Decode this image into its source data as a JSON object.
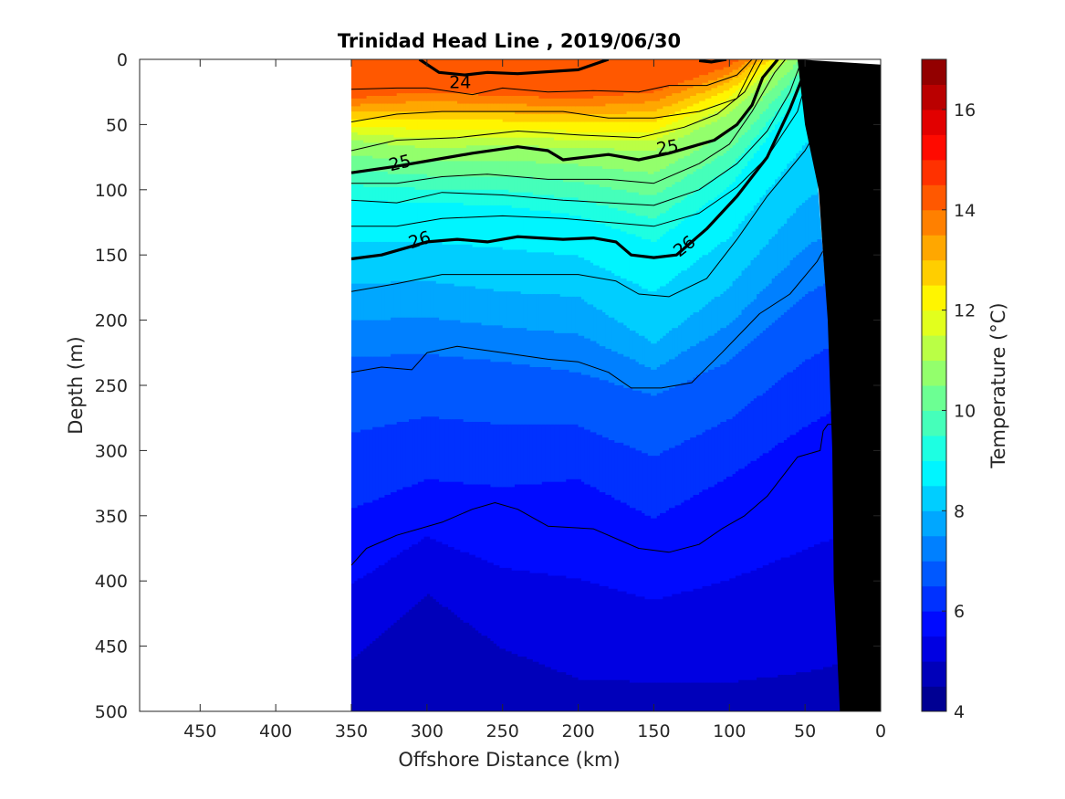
{
  "chart_data": {
    "type": "heatmap",
    "title": "Trinidad Head Line , 2019/06/30",
    "xlabel": "Offshore Distance (km)",
    "ylabel": "Depth (m)",
    "xlim": [
      490,
      0
    ],
    "ylim": [
      0,
      500
    ],
    "x_ticks": [
      {
        "value": 450,
        "label": "450"
      },
      {
        "value": 400,
        "label": "400"
      },
      {
        "value": 350,
        "label": "350"
      },
      {
        "value": 300,
        "label": "300"
      },
      {
        "value": 250,
        "label": "250"
      },
      {
        "value": 200,
        "label": "200"
      },
      {
        "value": 150,
        "label": "150"
      },
      {
        "value": 100,
        "label": "100"
      },
      {
        "value": 50,
        "label": "50"
      },
      {
        "value": 0,
        "label": "0"
      }
    ],
    "y_ticks": [
      {
        "value": 0,
        "label": "0"
      },
      {
        "value": 50,
        "label": "50"
      },
      {
        "value": 100,
        "label": "100"
      },
      {
        "value": 150,
        "label": "150"
      },
      {
        "value": 200,
        "label": "200"
      },
      {
        "value": 250,
        "label": "250"
      },
      {
        "value": 300,
        "label": "300"
      },
      {
        "value": 350,
        "label": "350"
      },
      {
        "value": 400,
        "label": "400"
      },
      {
        "value": 450,
        "label": "450"
      },
      {
        "value": 500,
        "label": "500"
      }
    ],
    "colorbar": {
      "label": "Temperature (°C)",
      "range": [
        4,
        17
      ],
      "step": 0.5,
      "ticks": [
        {
          "value": 4,
          "label": "4"
        },
        {
          "value": 6,
          "label": "6"
        },
        {
          "value": 8,
          "label": "8"
        },
        {
          "value": 10,
          "label": "10"
        },
        {
          "value": 12,
          "label": "12"
        },
        {
          "value": 14,
          "label": "14"
        },
        {
          "value": 16,
          "label": "16"
        }
      ],
      "colormap": "jet"
    },
    "data_extent_x": [
      350,
      20
    ],
    "temperature_profile": {
      "distance": [
        350,
        300,
        250,
        200,
        150,
        100,
        50,
        20
      ],
      "isotherms": [
        {
          "temp": 14,
          "depth": [
            30,
            25,
            28,
            30,
            25,
            5,
            -30,
            -50
          ]
        },
        {
          "temp": 11,
          "depth": [
            62,
            68,
            66,
            68,
            70,
            42,
            -12,
            -35
          ]
        },
        {
          "temp": 9,
          "depth": [
            108,
            110,
            112,
            120,
            140,
            98,
            22,
            -12
          ]
        },
        {
          "temp": 8,
          "depth": [
            172,
            170,
            178,
            182,
            218,
            175,
            108,
            88
          ]
        },
        {
          "temp": 7,
          "depth": [
            228,
            226,
            232,
            240,
            258,
            232,
            180,
            162
          ]
        },
        {
          "temp": 6,
          "depth": [
            345,
            322,
            328,
            322,
            352,
            320,
            282,
            262
          ]
        },
        {
          "temp": 5,
          "depth": [
            460,
            410,
            452,
            475,
            478,
            478,
            470,
            462
          ]
        }
      ]
    },
    "contours": [
      {
        "label": "24",
        "width": "thick",
        "points": [
          [
            305,
            0
          ],
          [
            292,
            10
          ],
          [
            275,
            12
          ],
          [
            260,
            10
          ],
          [
            240,
            11
          ],
          [
            200,
            8
          ],
          [
            180,
            0
          ]
        ]
      },
      {
        "label": "24",
        "width": "thick",
        "points": [
          [
            120,
            1
          ],
          [
            112,
            2
          ],
          [
            102,
            0
          ]
        ]
      },
      {
        "label": "",
        "width": "thin",
        "points": [
          [
            350,
            23
          ],
          [
            320,
            22
          ],
          [
            300,
            22
          ],
          [
            270,
            27
          ],
          [
            250,
            22
          ],
          [
            220,
            25
          ],
          [
            190,
            24
          ],
          [
            160,
            25
          ],
          [
            140,
            20
          ],
          [
            115,
            20
          ],
          [
            95,
            12
          ],
          [
            85,
            0
          ]
        ]
      },
      {
        "label": "",
        "width": "thin",
        "points": [
          [
            350,
            48
          ],
          [
            320,
            42
          ],
          [
            290,
            40
          ],
          [
            250,
            40
          ],
          [
            210,
            40
          ],
          [
            180,
            45
          ],
          [
            150,
            45
          ],
          [
            120,
            40
          ],
          [
            95,
            30
          ],
          [
            82,
            0
          ]
        ]
      },
      {
        "label": "",
        "width": "thin",
        "points": [
          [
            350,
            70
          ],
          [
            320,
            62
          ],
          [
            280,
            60
          ],
          [
            240,
            55
          ],
          [
            200,
            58
          ],
          [
            160,
            60
          ],
          [
            130,
            52
          ],
          [
            108,
            42
          ],
          [
            90,
            25
          ],
          [
            78,
            0
          ]
        ]
      },
      {
        "label": "25",
        "width": "thick",
        "points": [
          [
            350,
            87
          ],
          [
            320,
            82
          ],
          [
            290,
            76
          ],
          [
            270,
            72
          ],
          [
            240,
            67
          ],
          [
            220,
            70
          ],
          [
            210,
            77
          ],
          [
            180,
            73
          ],
          [
            160,
            77
          ],
          [
            140,
            72
          ],
          [
            110,
            62
          ],
          [
            95,
            50
          ],
          [
            85,
            35
          ],
          [
            78,
            14
          ],
          [
            68,
            0
          ]
        ]
      },
      {
        "label": "",
        "width": "thin",
        "points": [
          [
            350,
            95
          ],
          [
            320,
            95
          ],
          [
            290,
            90
          ],
          [
            260,
            88
          ],
          [
            220,
            92
          ],
          [
            180,
            92
          ],
          [
            150,
            95
          ],
          [
            120,
            80
          ],
          [
            100,
            65
          ],
          [
            85,
            40
          ],
          [
            70,
            10
          ],
          [
            63,
            0
          ]
        ]
      },
      {
        "label": "",
        "width": "thin",
        "points": [
          [
            350,
            108
          ],
          [
            320,
            110
          ],
          [
            290,
            102
          ],
          [
            250,
            104
          ],
          [
            210,
            108
          ],
          [
            180,
            110
          ],
          [
            150,
            112
          ],
          [
            120,
            100
          ],
          [
            95,
            80
          ],
          [
            75,
            55
          ],
          [
            60,
            25
          ],
          [
            52,
            0
          ]
        ]
      },
      {
        "label": "",
        "width": "thin",
        "points": [
          [
            350,
            128
          ],
          [
            320,
            128
          ],
          [
            290,
            122
          ],
          [
            250,
            120
          ],
          [
            210,
            122
          ],
          [
            180,
            125
          ],
          [
            150,
            128
          ],
          [
            120,
            118
          ],
          [
            95,
            98
          ],
          [
            75,
            75
          ],
          [
            55,
            40
          ],
          [
            45,
            0
          ]
        ]
      },
      {
        "label": "26",
        "width": "thick",
        "points": [
          [
            350,
            153
          ],
          [
            330,
            150
          ],
          [
            300,
            140
          ],
          [
            280,
            138
          ],
          [
            260,
            140
          ],
          [
            240,
            136
          ],
          [
            210,
            138
          ],
          [
            190,
            137
          ],
          [
            175,
            140
          ],
          [
            165,
            150
          ],
          [
            150,
            152
          ],
          [
            135,
            150
          ],
          [
            115,
            130
          ],
          [
            95,
            105
          ],
          [
            75,
            75
          ],
          [
            60,
            38
          ],
          [
            52,
            15
          ],
          [
            43,
            0
          ]
        ]
      },
      {
        "label": "",
        "width": "thin",
        "points": [
          [
            350,
            178
          ],
          [
            320,
            172
          ],
          [
            290,
            165
          ],
          [
            250,
            165
          ],
          [
            200,
            165
          ],
          [
            175,
            170
          ],
          [
            160,
            180
          ],
          [
            140,
            182
          ],
          [
            115,
            168
          ],
          [
            95,
            138
          ],
          [
            75,
            105
          ],
          [
            50,
            70
          ],
          [
            30,
            30
          ],
          [
            20,
            20
          ]
        ]
      },
      {
        "label": "",
        "width": "thin",
        "points": [
          [
            350,
            240
          ],
          [
            330,
            236
          ],
          [
            310,
            238
          ],
          [
            300,
            225
          ],
          [
            280,
            220
          ],
          [
            250,
            225
          ],
          [
            220,
            230
          ],
          [
            200,
            232
          ],
          [
            180,
            240
          ],
          [
            165,
            252
          ],
          [
            145,
            252
          ],
          [
            125,
            248
          ],
          [
            105,
            225
          ],
          [
            80,
            195
          ],
          [
            60,
            180
          ],
          [
            42,
            155
          ],
          [
            30,
            130
          ],
          [
            20,
            120
          ]
        ]
      },
      {
        "label": "",
        "width": "thin",
        "points": [
          [
            350,
            388
          ],
          [
            340,
            375
          ],
          [
            320,
            365
          ],
          [
            290,
            355
          ],
          [
            270,
            345
          ],
          [
            255,
            340
          ],
          [
            240,
            345
          ],
          [
            220,
            358
          ],
          [
            190,
            360
          ],
          [
            160,
            375
          ],
          [
            140,
            378
          ],
          [
            120,
            372
          ],
          [
            105,
            360
          ],
          [
            90,
            350
          ],
          [
            75,
            335
          ],
          [
            55,
            305
          ],
          [
            40,
            300
          ],
          [
            38,
            285
          ],
          [
            35,
            280
          ],
          [
            30,
            280
          ]
        ]
      }
    ],
    "contour_labels": [
      {
        "label": "24",
        "x": 278,
        "y": 17,
        "angle": 0
      },
      {
        "label": "25",
        "x": 318,
        "y": 79,
        "angle": -14
      },
      {
        "label": "25",
        "x": 141,
        "y": 67,
        "angle": -10
      },
      {
        "label": "26",
        "x": 305,
        "y": 138,
        "angle": -18
      },
      {
        "label": "26",
        "x": 130,
        "y": 143,
        "angle": -38
      }
    ],
    "seafloor": {
      "mask_polygon": [
        [
          0,
          0
        ],
        [
          0,
          500
        ],
        [
          25,
          500
        ],
        [
          28,
          400
        ],
        [
          30,
          300
        ],
        [
          34,
          200
        ],
        [
          38,
          150
        ],
        [
          42,
          90
        ],
        [
          50,
          0
        ]
      ],
      "fill_polygon": [
        [
          0,
          4
        ],
        [
          0,
          500
        ],
        [
          27,
          500
        ],
        [
          31,
          400
        ],
        [
          32,
          300
        ],
        [
          35,
          200
        ],
        [
          38,
          150
        ],
        [
          41,
          100
        ],
        [
          50,
          50
        ],
        [
          55,
          0
        ]
      ]
    }
  }
}
